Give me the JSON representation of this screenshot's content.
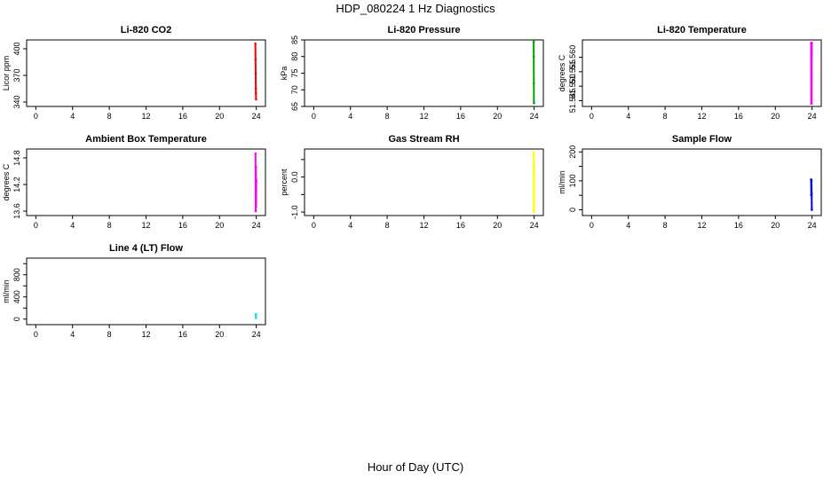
{
  "figure": {
    "title": "HDP_080224  1 Hz Diagnostics",
    "xlabel": "Hour of Day (UTC)"
  },
  "chart_data": [
    {
      "type": "line",
      "title": "Li-820 CO2",
      "ylabel": "Licor ppm",
      "xlim": [
        -1,
        25
      ],
      "ylim": [
        335,
        410
      ],
      "x_ticks": [
        0,
        4,
        8,
        12,
        16,
        20,
        24
      ],
      "y_ticks": [
        340,
        370,
        400
      ],
      "color": "#ff0000",
      "series": [
        {
          "x": [
            23.9,
            23.92,
            23.94,
            23.95,
            23.96,
            23.98
          ],
          "y": [
            406,
            388,
            372,
            355,
            350,
            343
          ]
        }
      ]
    },
    {
      "type": "line",
      "title": "Li-820 Pressure",
      "ylabel": "kPa",
      "xlim": [
        -1,
        25
      ],
      "ylim": [
        65,
        85
      ],
      "x_ticks": [
        0,
        4,
        8,
        12,
        16,
        20,
        24
      ],
      "y_ticks": [
        65,
        70,
        75,
        80,
        85
      ],
      "color": "#00a000",
      "series": [
        {
          "x": [
            23.95,
            23.96,
            23.97,
            23.98
          ],
          "y": [
            84.5,
            80,
            72,
            66
          ]
        }
      ]
    },
    {
      "type": "line",
      "title": "Li-820 Temperature",
      "ylabel": "degrees C",
      "xlim": [
        -1,
        25
      ],
      "ylim": [
        51.543,
        51.566
      ],
      "x_ticks": [
        0,
        4,
        8,
        12,
        16,
        20,
        24
      ],
      "y_ticks": [
        51.545,
        51.55,
        51.555,
        51.56
      ],
      "y_tick_labels": [
        "51.545",
        "51.550",
        "51.555",
        "51.560"
      ],
      "color": "#ff00ff",
      "series": [
        {
          "x": [
            23.9,
            23.92,
            23.94,
            23.96,
            23.98
          ],
          "y": [
            51.565,
            51.544,
            51.565,
            51.544,
            51.565
          ]
        }
      ]
    },
    {
      "type": "line",
      "title": "Ambient Box Temperature",
      "ylabel": "degrees C",
      "xlim": [
        -1,
        25
      ],
      "ylim": [
        13.5,
        15.0
      ],
      "x_ticks": [
        0,
        4,
        8,
        12,
        16,
        20,
        24
      ],
      "y_ticks": [
        13.6,
        14.2,
        14.8
      ],
      "color": "#ff00ff",
      "series": [
        {
          "x": [
            23.92,
            23.94,
            23.96,
            23.98,
            24.0
          ],
          "y": [
            14.9,
            13.6,
            14.6,
            13.7,
            14.3
          ]
        }
      ]
    },
    {
      "type": "line",
      "title": "Gas Stream RH",
      "ylabel": "percent",
      "xlim": [
        -1,
        25
      ],
      "ylim": [
        -1.1,
        0.8
      ],
      "x_ticks": [
        0,
        4,
        8,
        12,
        16,
        20,
        24
      ],
      "y_ticks": [
        -1.0,
        0.0
      ],
      "y_minor_ticks": [
        -0.5,
        0.5
      ],
      "y_tick_labels": [
        "-1.0",
        "0.0"
      ],
      "color": "#ffff00",
      "series": [
        {
          "x": [
            23.95,
            23.96,
            23.97,
            23.98,
            23.99
          ],
          "y": [
            0.7,
            -1.0,
            0.4,
            -0.9,
            0.2
          ]
        }
      ]
    },
    {
      "type": "line",
      "title": "Sample Flow",
      "ylabel": "ml/min",
      "xlim": [
        -1,
        25
      ],
      "ylim": [
        -20,
        210
      ],
      "x_ticks": [
        0,
        4,
        8,
        12,
        16,
        20,
        24
      ],
      "y_ticks": [
        0,
        100,
        200
      ],
      "y_minor_ticks": [
        50,
        150
      ],
      "color": "#0000ff",
      "series": [
        {
          "x": [
            23.9,
            23.92,
            23.94,
            23.96,
            23.98
          ],
          "y": [
            105,
            50,
            100,
            55,
            0
          ]
        }
      ]
    },
    {
      "type": "line",
      "title": "Line 4 (LT) Flow",
      "ylabel": "ml/min",
      "xlim": [
        -1,
        25
      ],
      "ylim": [
        -100,
        1100
      ],
      "x_ticks": [
        0,
        4,
        8,
        12,
        16,
        20,
        24
      ],
      "y_ticks": [
        0,
        400,
        800
      ],
      "y_minor_ticks": [
        200,
        600,
        1000
      ],
      "color": "#00e5ee",
      "series": [
        {
          "x": [
            23.95,
            23.96,
            23.97
          ],
          "y": [
            90,
            20,
            60
          ]
        }
      ]
    }
  ]
}
